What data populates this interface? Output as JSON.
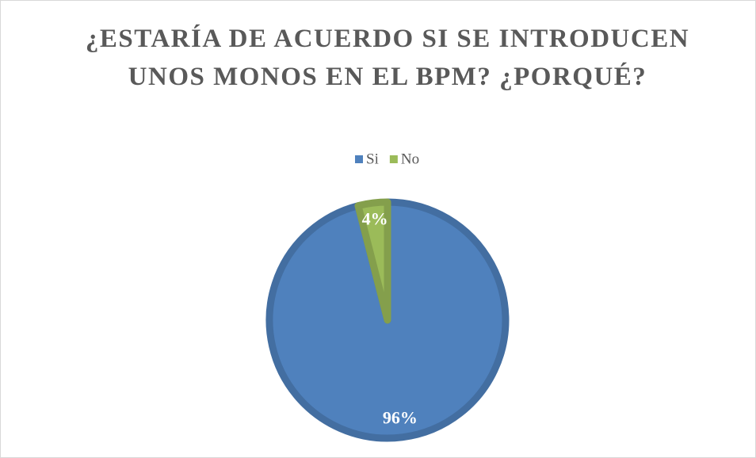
{
  "chart_data": {
    "type": "pie",
    "title": "¿ESTARÍA DE ACUERDO SI SE INTRODUCEN UNOS MONOS EN EL BPM? ¿PORQUÉ?",
    "categories": [
      "Si",
      "No"
    ],
    "values": [
      96,
      4
    ],
    "value_labels": [
      "96%",
      "4%"
    ],
    "colors": [
      "#4f81bd",
      "#9bbb59"
    ],
    "legend": "top"
  }
}
